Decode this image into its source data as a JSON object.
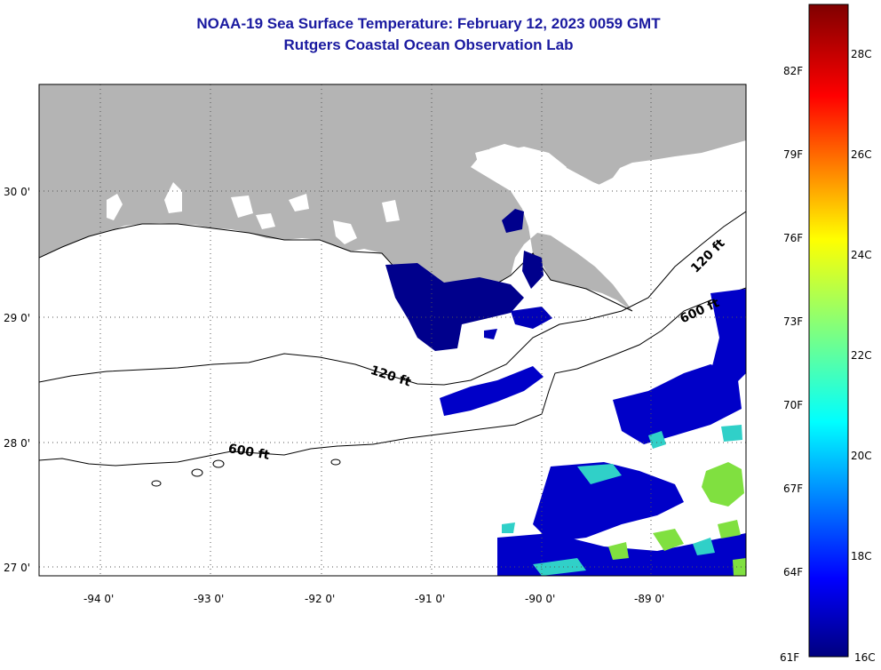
{
  "title": {
    "line1": "NOAA-19 Sea Surface Temperature:  February 12, 2023 0059 GMT",
    "line2": "Rutgers Coastal Ocean Observation Lab"
  },
  "map": {
    "lat_labels": [
      "30 0'",
      "29 0'",
      "28 0'",
      "27 0'"
    ],
    "lon_labels": [
      "-94 0'",
      "-93 0'",
      "-92 0'",
      "-91 0'",
      "-90 0'",
      "-89 0'"
    ],
    "contour_labels": [
      "120 ft",
      "600 ft",
      "120 ft",
      "600 ft"
    ],
    "colors": {
      "land": "#b4b4b4",
      "cold": "#00008c",
      "mid": "#0000d0",
      "cyan": "#30d0c8",
      "green": "#80e040"
    }
  },
  "colorbar": {
    "f_labels": [
      "82F",
      "79F",
      "76F",
      "73F",
      "70F",
      "67F",
      "64F",
      "61F"
    ],
    "c_labels": [
      "28C",
      "26C",
      "24C",
      "22C",
      "20C",
      "18C",
      "16C"
    ]
  }
}
